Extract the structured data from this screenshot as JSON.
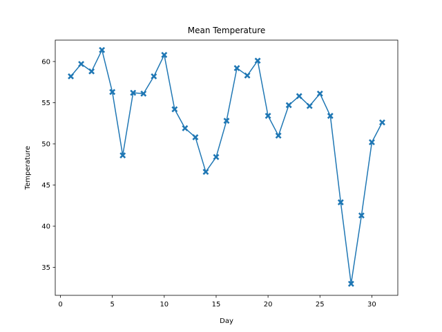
{
  "chart_data": {
    "type": "line",
    "title": "Mean Temperature",
    "xlabel": "Day",
    "ylabel": "Temperature",
    "xlim": [
      -0.5,
      32.5
    ],
    "ylim": [
      31.6,
      62.6
    ],
    "xticks": [
      0,
      5,
      10,
      15,
      20,
      25,
      30
    ],
    "yticks": [
      35,
      40,
      45,
      50,
      55,
      60
    ],
    "grid": false,
    "marker": "X",
    "color": "#1f77b4",
    "series": [
      {
        "x": [
          1,
          2,
          3,
          4,
          5,
          6,
          7,
          8,
          9,
          10,
          11,
          12,
          13,
          14,
          15,
          16,
          17,
          18,
          19,
          20,
          21,
          22,
          23,
          24,
          25,
          26,
          27,
          28,
          29,
          30,
          31
        ],
        "values": [
          58.2,
          59.7,
          58.8,
          61.4,
          56.3,
          48.6,
          56.2,
          56.1,
          58.2,
          60.8,
          54.2,
          51.9,
          50.8,
          46.6,
          48.4,
          52.8,
          59.2,
          58.3,
          60.1,
          53.4,
          51.0,
          54.7,
          55.8,
          54.6,
          56.1,
          53.4,
          42.9,
          33.0,
          41.3,
          50.2,
          52.6
        ]
      }
    ]
  }
}
